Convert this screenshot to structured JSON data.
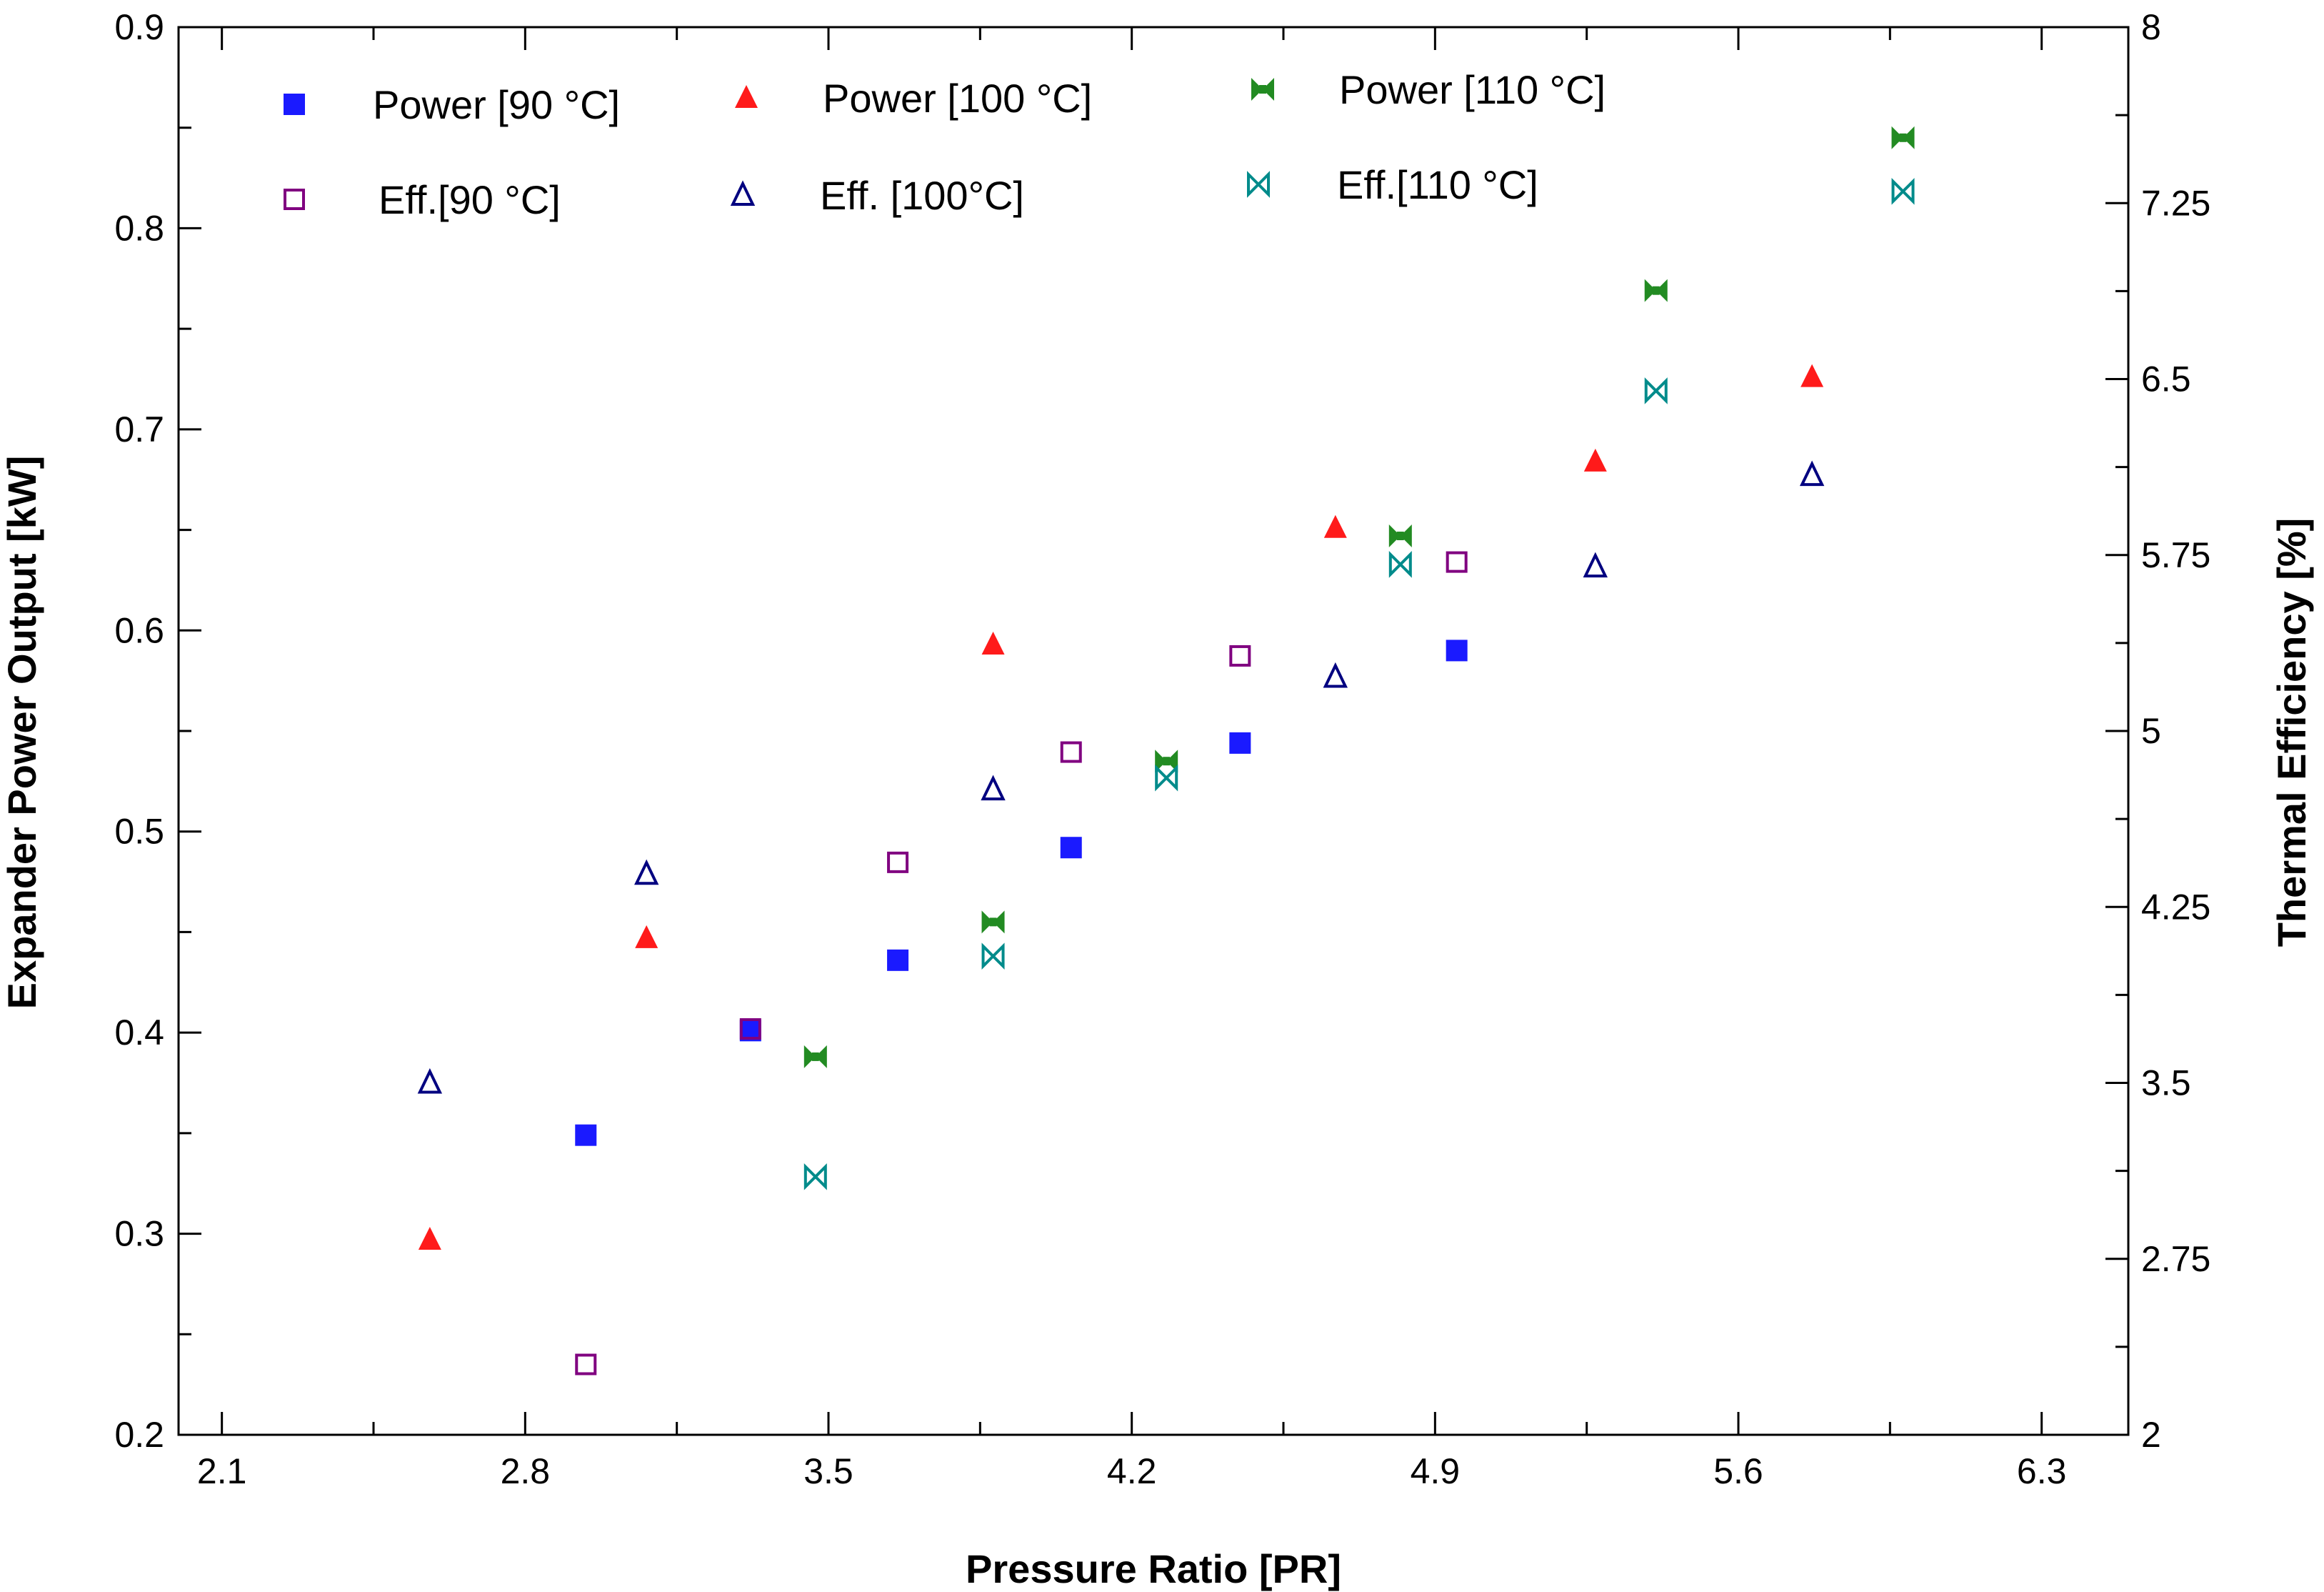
{
  "chart_data": {
    "type": "scatter",
    "xlabel": "Pressure Ratio [PR]",
    "ylabel": "Expander Power Output [kW]",
    "y2label": "Thermal Efficiency [%]",
    "xlim": [
      2.0,
      6.5
    ],
    "ylim": [
      0.2,
      0.9
    ],
    "y2lim": [
      2,
      8
    ],
    "xticks": [
      "2.1",
      "2.8",
      "3.5",
      "4.2",
      "4.9",
      "5.6",
      "6.3"
    ],
    "xtick_values": [
      2.1,
      2.8,
      3.5,
      4.2,
      4.9,
      5.6,
      6.3
    ],
    "yticks": [
      "0.2",
      "0.3",
      "0.4",
      "0.5",
      "0.6",
      "0.7",
      "0.8",
      "0.9"
    ],
    "ytick_values": [
      0.2,
      0.3,
      0.4,
      0.5,
      0.6,
      0.7,
      0.8,
      0.9
    ],
    "y2ticks": [
      "2",
      "2.75",
      "3.5",
      "4.25",
      "5",
      "5.75",
      "6.5",
      "7.25",
      "8"
    ],
    "y2tick_values": [
      2,
      2.75,
      3.5,
      4.25,
      5,
      5.75,
      6.5,
      7.25,
      8
    ],
    "legend_position": "top-left",
    "grid": false,
    "series": [
      {
        "name": "Power [90 °C]",
        "axis": "left",
        "marker": "square-filled",
        "color": "#1a1aff",
        "x": [
          2.94,
          3.32,
          3.66,
          4.06,
          4.45,
          4.95
        ],
        "y": [
          0.349,
          0.401,
          0.436,
          0.492,
          0.544,
          0.59
        ]
      },
      {
        "name": "Power [100 °C]",
        "axis": "left",
        "marker": "triangle-filled",
        "color": "#ff1a1a",
        "x": [
          2.58,
          3.08,
          3.88,
          4.67,
          5.27,
          5.77
        ],
        "y": [
          0.297,
          0.447,
          0.593,
          0.651,
          0.684,
          0.726
        ]
      },
      {
        "name": "Power [110 °C]",
        "axis": "left",
        "marker": "bowtie-filled",
        "color": "#228b22",
        "x": [
          3.47,
          3.88,
          4.28,
          4.82,
          5.41,
          5.98
        ],
        "y": [
          0.388,
          0.455,
          0.535,
          0.647,
          0.769,
          0.845
        ]
      },
      {
        "name": "Eff.[90 °C]",
        "axis": "right",
        "marker": "square-open",
        "color": "#800080",
        "x": [
          2.94,
          3.32,
          3.66,
          4.06,
          4.45,
          4.95
        ],
        "y": [
          2.3,
          3.73,
          4.44,
          4.91,
          5.32,
          5.72
        ]
      },
      {
        "name": "Eff. [100°C]",
        "axis": "right",
        "marker": "triangle-open",
        "color": "#000080",
        "x": [
          2.58,
          3.08,
          3.88,
          4.67,
          5.27,
          5.77
        ],
        "y": [
          3.5,
          4.39,
          4.75,
          5.23,
          5.7,
          6.09
        ]
      },
      {
        "name": "Eff.[110 °C]",
        "axis": "right",
        "marker": "bowtie-open",
        "color": "#008b8b",
        "x": [
          3.47,
          3.88,
          4.28,
          4.82,
          5.41,
          5.98
        ],
        "y": [
          3.1,
          4.04,
          4.8,
          5.71,
          6.45,
          7.3
        ]
      }
    ]
  }
}
